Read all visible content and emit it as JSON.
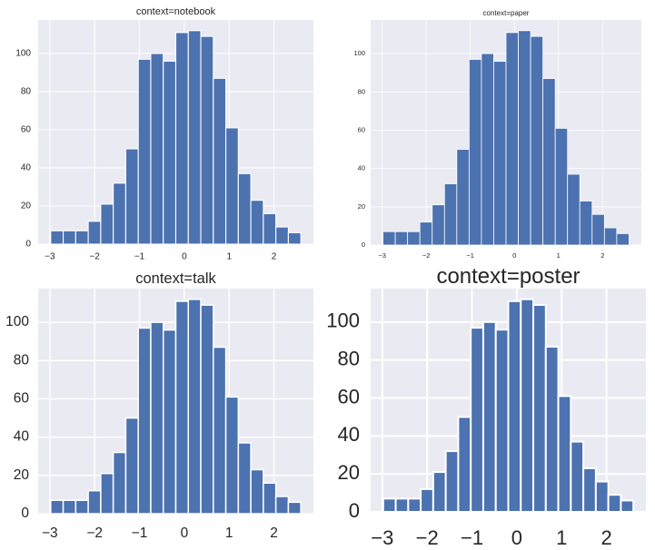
{
  "chart_data": [
    {
      "type": "bar",
      "title": "context=notebook",
      "bin_start": -2.98,
      "bin_width": 0.279,
      "values": [
        7,
        7,
        7,
        12,
        21,
        32,
        50,
        97,
        100,
        96,
        111,
        112,
        109,
        87,
        61,
        37,
        23,
        16,
        9,
        6
      ],
      "xlim": [
        -3.26,
        2.88
      ],
      "ylim": [
        0,
        117.6
      ],
      "xticks": [
        -3,
        -2,
        -1,
        0,
        1,
        2
      ],
      "xtick_labels": [
        "−3",
        "−2",
        "−1",
        "0",
        "1",
        "2"
      ],
      "yticks": [
        0,
        20,
        40,
        60,
        80,
        100
      ],
      "ytick_labels": [
        "0",
        "20",
        "40",
        "60",
        "80",
        "100"
      ],
      "grid": true,
      "bar_color": "#4c72b0",
      "background": "#eaeaf2"
    },
    {
      "type": "bar",
      "title": "context=paper",
      "bin_start": -2.98,
      "bin_width": 0.279,
      "values": [
        7,
        7,
        7,
        12,
        21,
        32,
        50,
        97,
        100,
        96,
        111,
        112,
        109,
        87,
        61,
        37,
        23,
        16,
        9,
        6
      ],
      "xlim": [
        -3.26,
        2.88
      ],
      "ylim": [
        0,
        117.6
      ],
      "xticks": [
        -3,
        -2,
        -1,
        0,
        1,
        2
      ],
      "xtick_labels": [
        "−3",
        "−2",
        "−1",
        "0",
        "1",
        "2"
      ],
      "yticks": [
        0,
        20,
        40,
        60,
        80,
        100
      ],
      "ytick_labels": [
        "0",
        "20",
        "40",
        "60",
        "80",
        "100"
      ],
      "grid": true,
      "bar_color": "#4c72b0",
      "background": "#eaeaf2"
    },
    {
      "type": "bar",
      "title": "context=talk",
      "bin_start": -2.98,
      "bin_width": 0.279,
      "values": [
        7,
        7,
        7,
        12,
        21,
        32,
        50,
        97,
        100,
        96,
        111,
        112,
        109,
        87,
        61,
        37,
        23,
        16,
        9,
        6
      ],
      "xlim": [
        -3.26,
        2.88
      ],
      "ylim": [
        0,
        117.6
      ],
      "xticks": [
        -3,
        -2,
        -1,
        0,
        1,
        2
      ],
      "xtick_labels": [
        "−3",
        "−2",
        "−1",
        "0",
        "1",
        "2"
      ],
      "yticks": [
        0,
        20,
        40,
        60,
        80,
        100
      ],
      "ytick_labels": [
        "0",
        "20",
        "40",
        "60",
        "80",
        "100"
      ],
      "grid": true,
      "bar_color": "#4c72b0",
      "background": "#eaeaf2"
    },
    {
      "type": "bar",
      "title": "context=poster",
      "bin_start": -2.98,
      "bin_width": 0.279,
      "values": [
        7,
        7,
        7,
        12,
        21,
        32,
        50,
        97,
        100,
        96,
        111,
        112,
        109,
        87,
        61,
        37,
        23,
        16,
        9,
        6
      ],
      "xlim": [
        -3.26,
        2.88
      ],
      "ylim": [
        0,
        117.6
      ],
      "xticks": [
        -3,
        -2,
        -1,
        0,
        1,
        2
      ],
      "xtick_labels": [
        "−3",
        "−2",
        "−1",
        "0",
        "1",
        "2"
      ],
      "yticks": [
        0,
        20,
        40,
        60,
        80,
        100
      ],
      "ytick_labels": [
        "0",
        "20",
        "40",
        "60",
        "80",
        "100"
      ],
      "grid": true,
      "bar_color": "#4c72b0",
      "background": "#eaeaf2"
    }
  ]
}
